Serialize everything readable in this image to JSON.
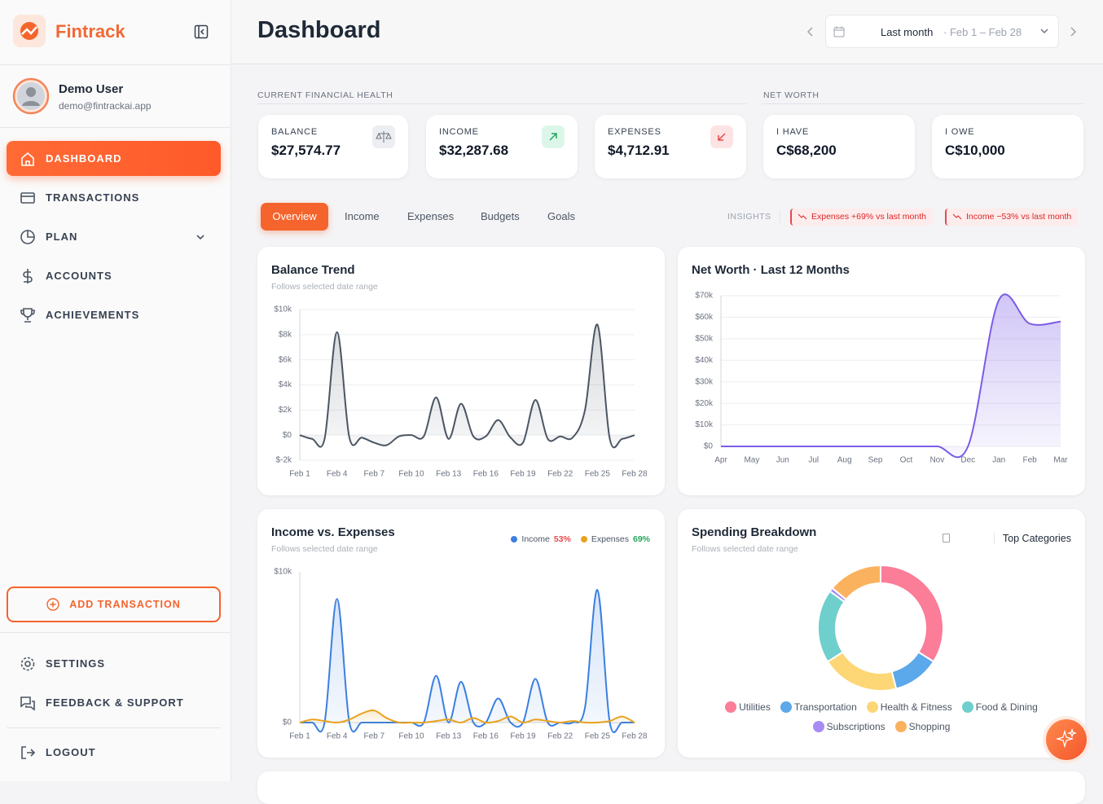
{
  "sidebar": {
    "brand": "Fintrack",
    "user_name": "Demo User",
    "user_email": "demo@fintrackai.app",
    "nav": [
      "DASHBOARD",
      "TRANSACTIONS",
      "PLAN",
      "ACCOUNTS",
      "ACHIEVEMENTS"
    ],
    "add_button": "ADD TRANSACTION",
    "footer_nav": [
      "SETTINGS",
      "FEEDBACK & SUPPORT"
    ],
    "logout": "LOGOUT"
  },
  "header": {
    "title": "Dashboard",
    "range_label": "Last month",
    "range_dates": "· Feb 1 – Feb 28"
  },
  "sections": {
    "health": "CURRENT FINANCIAL HEALTH",
    "net_worth": "NET WORTH"
  },
  "kpis": [
    {
      "label": "BALANCE",
      "value": "$27,574.77"
    },
    {
      "label": "INCOME",
      "value": "$32,287.68"
    },
    {
      "label": "EXPENSES",
      "value": "$4,712.91"
    },
    {
      "label": "I HAVE",
      "value": "C$68,200"
    },
    {
      "label": "I OWE",
      "value": "C$10,000"
    }
  ],
  "tabs": [
    "Overview",
    "Income",
    "Expenses",
    "Budgets",
    "Goals"
  ],
  "insights": {
    "label": "INSIGHTS",
    "items": [
      "Expenses +69% vs last month",
      "Income −53% vs last month"
    ]
  },
  "chart_data": [
    {
      "type": "line",
      "title": "Balance Trend",
      "subtitle": "Follows selected date range",
      "fill": true,
      "grid": true,
      "categories": [
        "Feb 1",
        null,
        null,
        "Feb 4",
        null,
        null,
        "Feb 7",
        null,
        null,
        "Feb 10",
        null,
        null,
        "Feb 13",
        null,
        null,
        "Feb 16",
        null,
        null,
        "Feb 19",
        null,
        null,
        "Feb 22",
        null,
        null,
        "Feb 25",
        null,
        null,
        "Feb 28"
      ],
      "series": [
        {
          "color": "#4b5563",
          "values": [
            0,
            -300,
            -300,
            8200,
            -200,
            -200,
            -600,
            -800,
            -100,
            0,
            -100,
            3000,
            -300,
            2500,
            -100,
            -100,
            1200,
            -200,
            -600,
            2800,
            -300,
            -100,
            -200,
            2000,
            8800,
            -300,
            -300,
            0
          ]
        }
      ],
      "ylim": [
        -2000,
        10000
      ],
      "yticks": [
        {
          "value": -2000,
          "label": "$-2k"
        },
        {
          "value": 0,
          "label": "$0"
        },
        {
          "value": 2000,
          "label": "$2k"
        },
        {
          "value": 4000,
          "label": "$4k"
        },
        {
          "value": 6000,
          "label": "$6k"
        },
        {
          "value": 8000,
          "label": "$8k"
        },
        {
          "value": 10000,
          "label": "$10k"
        }
      ]
    },
    {
      "type": "area",
      "title": "Net Worth · Last 12 Months",
      "grid": true,
      "categories": [
        "Apr",
        "May",
        "Jun",
        "Jul",
        "Aug",
        "Sep",
        "Oct",
        "Nov",
        "Dec",
        "Jan",
        "Feb",
        "Mar"
      ],
      "series": [
        {
          "color": "#7c5ce6",
          "values": [
            0,
            0,
            0,
            0,
            0,
            0,
            0,
            0,
            0,
            68000,
            57000,
            58000
          ]
        }
      ],
      "ylim": [
        0,
        70000
      ],
      "yticks": [
        {
          "value": 0,
          "label": "$0"
        },
        {
          "value": 10000,
          "label": "$10k"
        },
        {
          "value": 20000,
          "label": "$20k"
        },
        {
          "value": 30000,
          "label": "$30k"
        },
        {
          "value": 40000,
          "label": "$40k"
        },
        {
          "value": 50000,
          "label": "$50k"
        },
        {
          "value": 60000,
          "label": "$60k"
        },
        {
          "value": 70000,
          "label": "$70k"
        }
      ]
    },
    {
      "type": "line",
      "title": "Income vs. Expenses",
      "subtitle": "Follows selected date range",
      "fill": true,
      "grid": false,
      "categories": [
        "Feb 1",
        null,
        null,
        "Feb 4",
        null,
        null,
        "Feb 7",
        null,
        null,
        "Feb 10",
        null,
        null,
        "Feb 13",
        null,
        null,
        "Feb 16",
        null,
        null,
        "Feb 19",
        null,
        null,
        "Feb 22",
        null,
        null,
        "Feb 25",
        null,
        null,
        "Feb 28"
      ],
      "series": [
        {
          "name": "Income",
          "color": "#3b7fe0",
          "note": "53%",
          "note_color": "#e5484d",
          "values": [
            0,
            0,
            0,
            8200,
            0,
            0,
            0,
            0,
            0,
            0,
            0,
            3100,
            0,
            2700,
            0,
            0,
            1600,
            0,
            0,
            2900,
            0,
            0,
            0,
            1000,
            8800,
            0,
            0,
            0
          ]
        },
        {
          "name": "Expenses",
          "color": "#e9a21f",
          "note": "69%",
          "note_color": "#22a55b",
          "values": [
            0,
            200,
            100,
            0,
            200,
            600,
            800,
            300,
            0,
            0,
            0,
            100,
            200,
            0,
            300,
            0,
            100,
            400,
            0,
            200,
            100,
            0,
            100,
            0,
            0,
            100,
            400,
            0
          ]
        }
      ],
      "ylim": [
        0,
        10000
      ],
      "yticks": [
        {
          "value": 0,
          "label": "$0"
        },
        {
          "value": 10000,
          "label": "$10k"
        }
      ]
    },
    {
      "type": "donut",
      "title": "Spending Breakdown",
      "subtitle": "Follows selected date range",
      "menu_label": "Top Categories",
      "categories": [
        "Utilities",
        "Transportation",
        "Health & Fitness",
        "Food & Dining",
        "Subscriptions",
        "Shopping"
      ],
      "values": [
        34,
        12,
        20,
        19,
        1,
        14
      ],
      "colors": [
        "#fb7d98",
        "#5ba8ea",
        "#fdd776",
        "#6fcfcc",
        "#a98bf5",
        "#fbb25e"
      ]
    }
  ]
}
